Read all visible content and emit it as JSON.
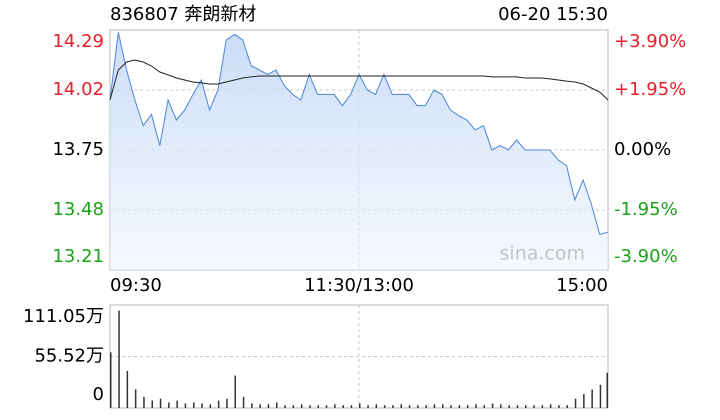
{
  "chart_data": [
    {
      "type": "line",
      "title": "836807 奔朗新材",
      "subtitle": "06-20 15:30",
      "watermark": "sina.com",
      "x": [
        0,
        4,
        8,
        12,
        16,
        20,
        24,
        28,
        32,
        36,
        40,
        44,
        48,
        52,
        56,
        60,
        64,
        68,
        72,
        76,
        80,
        84,
        88,
        92,
        96,
        100,
        104,
        108,
        112,
        116,
        120,
        124,
        128,
        132,
        136,
        140,
        144,
        148,
        152,
        156,
        160,
        164,
        168,
        172,
        176,
        180,
        184,
        188,
        192,
        196,
        200,
        204,
        208,
        212,
        216,
        220,
        224,
        228,
        232,
        236,
        240
      ],
      "xlim": [
        0,
        240
      ],
      "xticks": [
        {
          "value": 0,
          "label": "09:30"
        },
        {
          "value": 120,
          "label": "11:30/13:00"
        },
        {
          "value": 240,
          "label": "15:00"
        }
      ],
      "ylim": [
        13.21,
        14.29
      ],
      "yticks": [
        14.29,
        14.02,
        13.75,
        13.48,
        13.21
      ],
      "ytick_colors": [
        "#e8202a",
        "#e8202a",
        "#000000",
        "#1aa11a",
        "#1aa11a"
      ],
      "y2lim": [
        -3.9,
        3.9
      ],
      "y2ticks": [
        {
          "value": 3.9,
          "label": "+3.90%"
        },
        {
          "value": 1.95,
          "label": "+1.95%"
        },
        {
          "value": 0,
          "label": "0.00%"
        },
        {
          "value": -1.95,
          "label": "-1.95%"
        },
        {
          "value": -3.9,
          "label": "-3.90%"
        }
      ],
      "grid": true,
      "series": [
        {
          "color": "#4a86d8",
          "values": [
            13.975,
            14.28,
            14.11,
            13.975,
            13.86,
            13.91,
            13.77,
            13.975,
            13.885,
            13.93,
            14.0,
            14.065,
            13.93,
            14.02,
            14.245,
            14.27,
            14.245,
            14.13,
            14.11,
            14.09,
            14.11,
            14.04,
            14.0,
            13.975,
            14.09,
            14.0,
            14.0,
            14.0,
            13.95,
            14.0,
            14.09,
            14.02,
            14.0,
            14.09,
            14.0,
            14.0,
            14.0,
            13.95,
            13.95,
            14.02,
            14.0,
            13.93,
            13.905,
            13.885,
            13.84,
            13.86,
            13.75,
            13.77,
            13.75,
            13.795,
            13.75,
            13.75,
            13.75,
            13.75,
            13.705,
            13.68,
            13.525,
            13.615,
            13.505,
            13.37,
            13.38
          ]
        },
        {
          "color": "#222222",
          "values": [
            13.975,
            14.11,
            14.146,
            14.155,
            14.146,
            14.128,
            14.101,
            14.088,
            14.074,
            14.065,
            14.056,
            14.052,
            14.047,
            14.047,
            14.056,
            14.065,
            14.074,
            14.079,
            14.083,
            14.083,
            14.083,
            14.083,
            14.083,
            14.083,
            14.083,
            14.083,
            14.083,
            14.083,
            14.083,
            14.083,
            14.083,
            14.083,
            14.083,
            14.083,
            14.083,
            14.083,
            14.083,
            14.083,
            14.083,
            14.083,
            14.083,
            14.083,
            14.083,
            14.083,
            14.083,
            14.083,
            14.079,
            14.079,
            14.079,
            14.079,
            14.074,
            14.074,
            14.074,
            14.07,
            14.065,
            14.06,
            14.056,
            14.047,
            14.029,
            14.011,
            13.975
          ]
        }
      ]
    },
    {
      "type": "bar",
      "color": "#333333",
      "x": [
        0,
        4,
        8,
        12,
        16,
        20,
        24,
        28,
        32,
        36,
        40,
        44,
        48,
        52,
        56,
        60,
        64,
        68,
        72,
        76,
        80,
        84,
        88,
        92,
        96,
        100,
        104,
        108,
        112,
        116,
        120,
        124,
        128,
        132,
        136,
        140,
        144,
        148,
        152,
        156,
        160,
        164,
        168,
        172,
        176,
        180,
        184,
        188,
        192,
        196,
        200,
        204,
        208,
        212,
        216,
        220,
        224,
        228,
        232,
        236,
        240
      ],
      "xlim": [
        0,
        240
      ],
      "values": [
        60,
        105,
        40,
        20,
        12,
        8,
        10,
        6,
        8,
        5,
        6,
        5,
        4,
        8,
        10,
        35,
        12,
        5,
        4,
        4,
        6,
        3,
        3,
        4,
        3,
        3,
        3,
        4,
        3,
        3,
        5,
        3,
        4,
        3,
        3,
        4,
        3,
        3,
        3,
        4,
        4,
        3,
        3,
        3,
        4,
        3,
        5,
        4,
        3,
        3,
        3,
        3,
        3,
        4,
        3,
        3,
        10,
        15,
        20,
        25,
        38
      ],
      "ylim": [
        0,
        111.05
      ],
      "yticks": [
        0,
        {
          "value": 55.52,
          "label": "55.52万"
        },
        {
          "value": 111.05,
          "label": "111.05万"
        }
      ],
      "grid": true
    }
  ]
}
